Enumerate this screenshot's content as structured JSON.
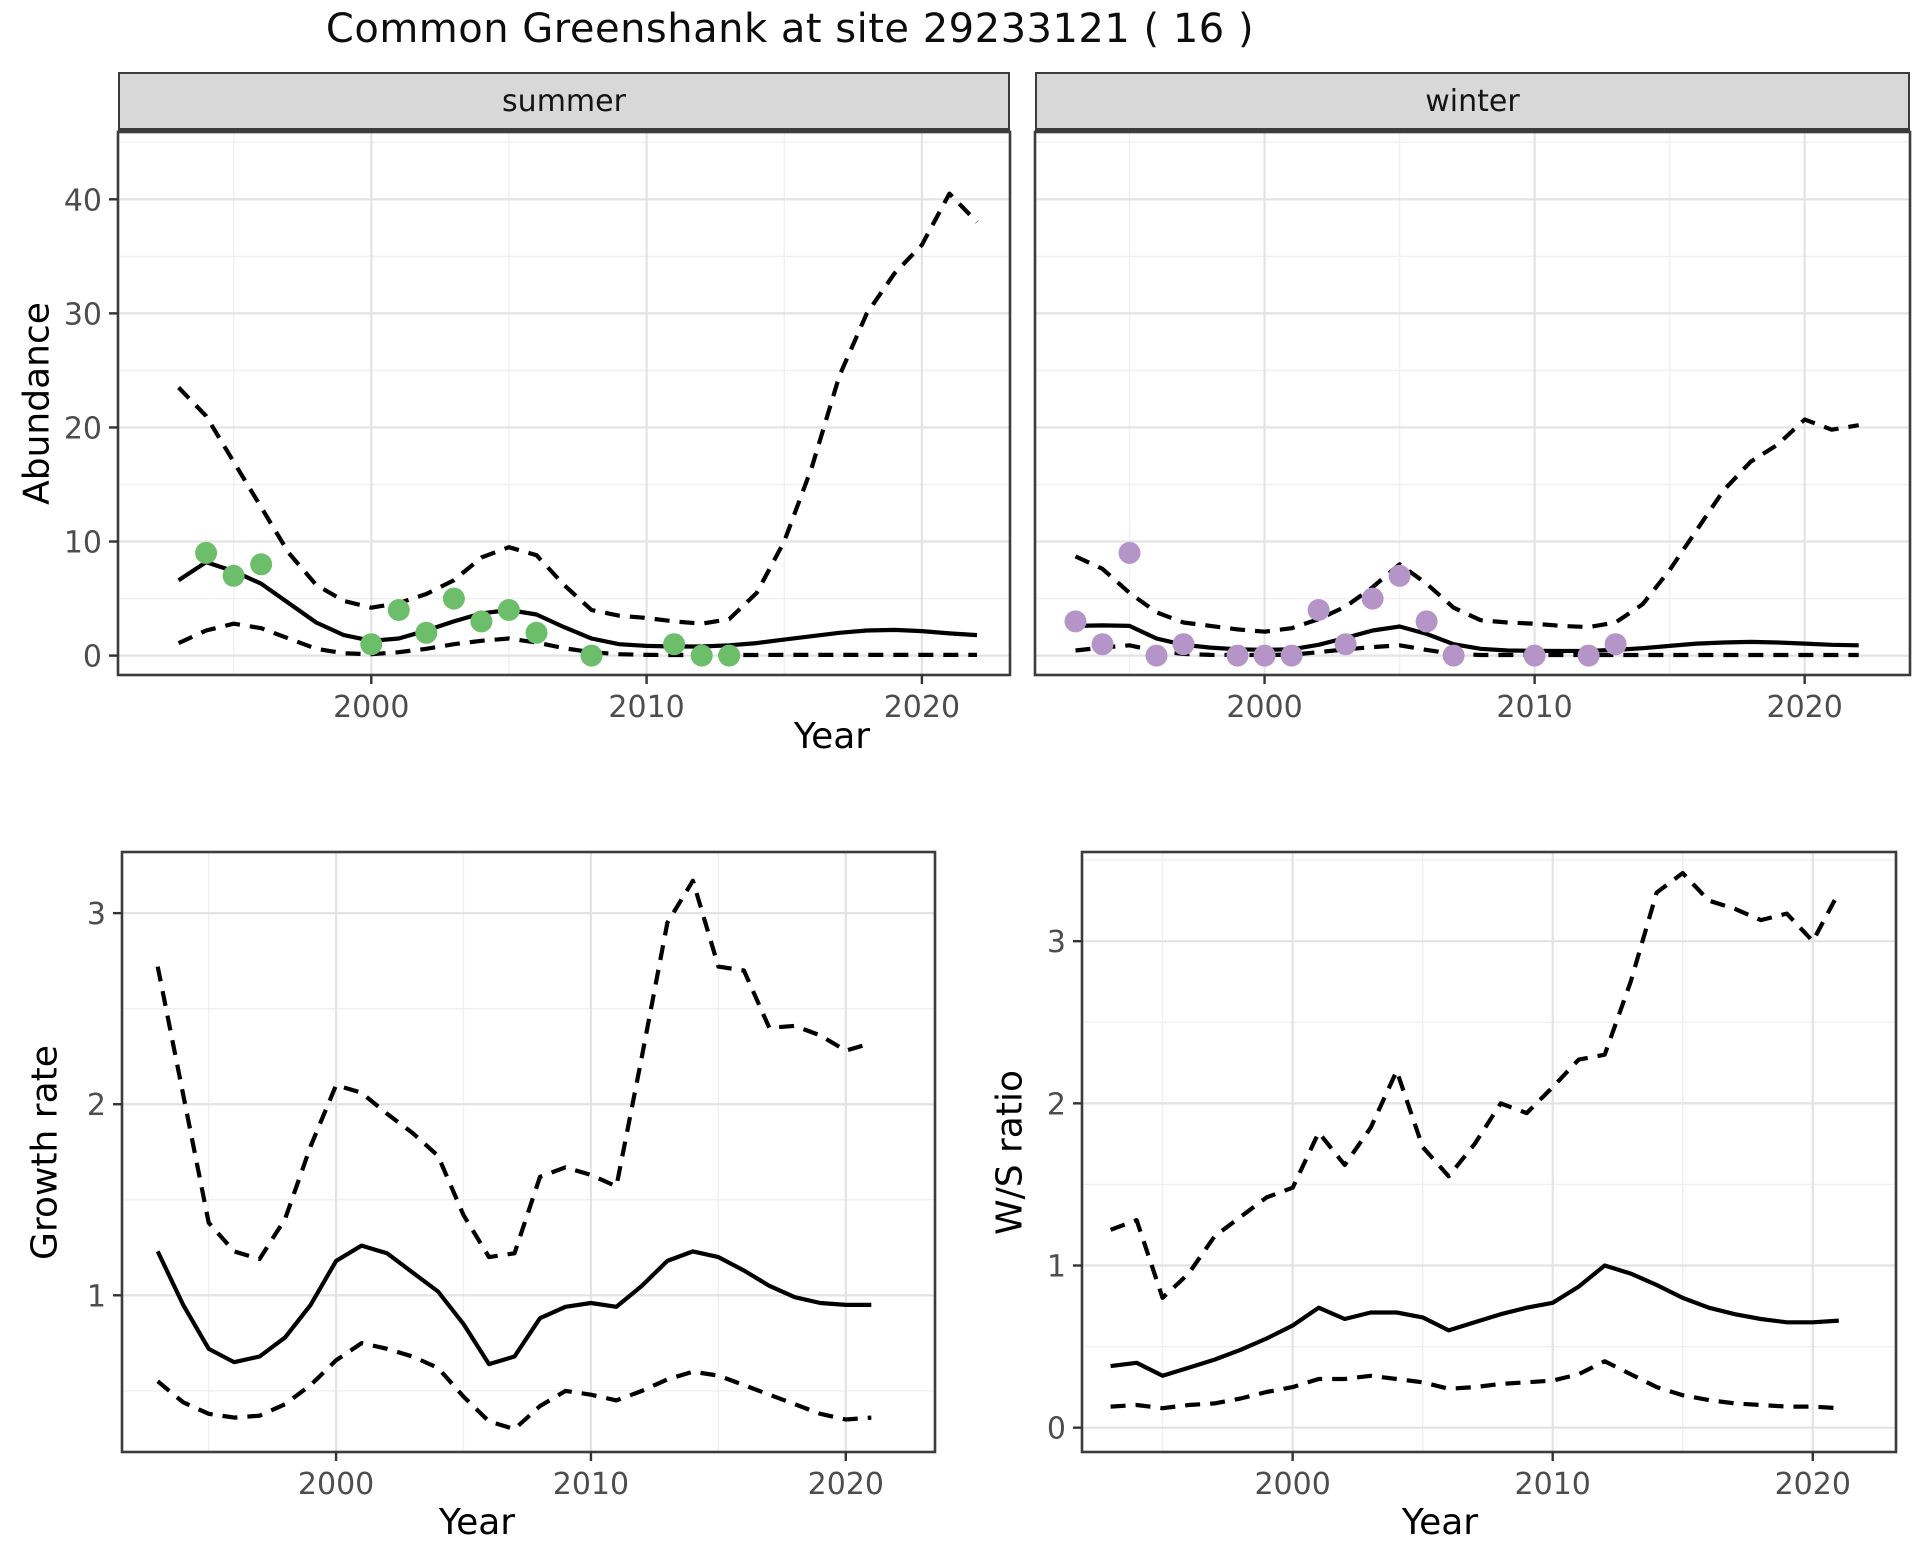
{
  "title": "Common Greenshank at site 29233121 ( 16 )",
  "top_row_xlabel": "Year",
  "colors": {
    "summer_points": "#6dbe6a",
    "winter_points": "#b594c7",
    "line": "#000000",
    "grid_major": "#e3e3e3",
    "grid_minor": "#f0f0f0",
    "strip_bg": "#d8d8d8",
    "panel_border": "#3c3c3c",
    "tick_text": "#4d4d4d"
  },
  "chart_data": [
    {
      "id": "abundance-summer",
      "type": "line",
      "facet": "summer",
      "xlabel": "Year",
      "ylabel": "Abundance",
      "xlim": [
        1990.8,
        2023.2
      ],
      "ylim": [
        -1.7,
        45.9
      ],
      "x_ticks": {
        "values": [
          2000,
          2010,
          2020
        ],
        "labels": [
          "2000",
          "2010",
          "2020"
        ]
      },
      "x_minor": [
        1995,
        2005,
        2015
      ],
      "y_ticks": {
        "values": [
          0,
          10,
          20,
          30,
          40
        ],
        "labels": [
          "0",
          "10",
          "20",
          "30",
          "40"
        ],
        "show": true
      },
      "y_minor": [
        5,
        15,
        25,
        35,
        45
      ],
      "years": [
        1993,
        1994,
        1995,
        1996,
        1997,
        1998,
        1999,
        2000,
        2001,
        2002,
        2003,
        2004,
        2005,
        2006,
        2007,
        2008,
        2009,
        2010,
        2011,
        2012,
        2013,
        2014,
        2015,
        2016,
        2017,
        2018,
        2019,
        2020,
        2021,
        2022
      ],
      "series": [
        {
          "name": "upper-ci",
          "style": "dashed",
          "values": [
            23.5,
            21.0,
            17.0,
            13.0,
            9.0,
            6.2,
            4.8,
            4.2,
            4.6,
            5.4,
            6.6,
            8.6,
            9.5,
            8.8,
            6.2,
            4.0,
            3.5,
            3.3,
            3.0,
            2.8,
            3.2,
            5.5,
            10.0,
            16.5,
            24.5,
            30.0,
            33.5,
            36.0,
            40.5,
            38.0
          ]
        },
        {
          "name": "estimate",
          "style": "solid",
          "values": [
            6.6,
            8.2,
            7.4,
            6.3,
            4.6,
            2.9,
            1.8,
            1.3,
            1.5,
            2.2,
            3.0,
            3.7,
            4.0,
            3.6,
            2.5,
            1.5,
            1.0,
            0.85,
            0.8,
            0.8,
            0.9,
            1.1,
            1.4,
            1.7,
            2.0,
            2.2,
            2.25,
            2.15,
            1.95,
            1.8
          ]
        },
        {
          "name": "lower-ci",
          "style": "dashed",
          "values": [
            1.1,
            2.2,
            2.8,
            2.4,
            1.5,
            0.6,
            0.2,
            0.12,
            0.3,
            0.6,
            1.0,
            1.3,
            1.5,
            1.15,
            0.65,
            0.3,
            0.12,
            0.06,
            0.05,
            0.05,
            0.05,
            0.05,
            0.06,
            0.06,
            0.06,
            0.06,
            0.06,
            0.06,
            0.06,
            0.06
          ]
        }
      ],
      "points": {
        "name": "observed-counts",
        "color_key": "summer_points",
        "x": [
          1994,
          1995,
          1996,
          2000,
          2001,
          2002,
          2003,
          2004,
          2005,
          2006,
          2008,
          2011,
          2012,
          2013
        ],
        "y": [
          9,
          7,
          8,
          1,
          4,
          2,
          5,
          3,
          4,
          2,
          0,
          1,
          0,
          0
        ]
      }
    },
    {
      "id": "abundance-winter",
      "type": "line",
      "facet": "winter",
      "xlabel": "Year",
      "ylabel": "",
      "xlim": [
        1991.5,
        2023.9
      ],
      "ylim": [
        -1.7,
        45.9
      ],
      "x_ticks": {
        "values": [
          2000,
          2010,
          2020
        ],
        "labels": [
          "2000",
          "2010",
          "2020"
        ]
      },
      "x_minor": [
        1995,
        2005,
        2015
      ],
      "y_ticks": {
        "values": [
          0,
          10,
          20,
          30,
          40
        ],
        "labels": [
          "0",
          "10",
          "20",
          "30",
          "40"
        ],
        "show": false
      },
      "y_minor": [
        5,
        15,
        25,
        35,
        45
      ],
      "years": [
        1993,
        1994,
        1995,
        1996,
        1997,
        1998,
        1999,
        2000,
        2001,
        2002,
        2003,
        2004,
        2005,
        2006,
        2007,
        2008,
        2009,
        2010,
        2011,
        2012,
        2013,
        2014,
        2015,
        2016,
        2017,
        2018,
        2019,
        2020,
        2021,
        2022
      ],
      "series": [
        {
          "name": "upper-ci",
          "style": "dashed",
          "values": [
            8.7,
            7.6,
            5.5,
            3.8,
            2.9,
            2.6,
            2.3,
            2.1,
            2.4,
            3.2,
            4.3,
            6.0,
            8.0,
            6.3,
            4.2,
            3.1,
            2.9,
            2.8,
            2.6,
            2.5,
            2.9,
            4.5,
            7.5,
            11.0,
            14.5,
            17.0,
            18.5,
            20.7,
            19.8,
            20.2
          ]
        },
        {
          "name": "estimate",
          "style": "solid",
          "values": [
            2.6,
            2.65,
            2.6,
            1.5,
            0.95,
            0.7,
            0.55,
            0.5,
            0.55,
            0.95,
            1.55,
            2.2,
            2.55,
            1.9,
            1.0,
            0.6,
            0.45,
            0.42,
            0.4,
            0.42,
            0.5,
            0.65,
            0.85,
            1.05,
            1.15,
            1.2,
            1.15,
            1.05,
            0.95,
            0.9
          ]
        },
        {
          "name": "lower-ci",
          "style": "dashed",
          "values": [
            0.45,
            0.7,
            0.9,
            0.4,
            0.15,
            0.06,
            0.05,
            0.05,
            0.08,
            0.3,
            0.55,
            0.75,
            0.9,
            0.5,
            0.15,
            0.05,
            0.05,
            0.05,
            0.05,
            0.05,
            0.05,
            0.05,
            0.05,
            0.05,
            0.05,
            0.05,
            0.05,
            0.05,
            0.05,
            0.05
          ]
        }
      ],
      "points": {
        "name": "observed-counts",
        "color_key": "winter_points",
        "x": [
          1993,
          1994,
          1995,
          1996,
          1997,
          1999,
          2000,
          2001,
          2002,
          2003,
          2004,
          2005,
          2006,
          2007,
          2010,
          2012,
          2013
        ],
        "y": [
          3,
          1,
          9,
          0,
          1,
          0,
          0,
          0,
          4,
          1,
          5,
          7,
          3,
          0,
          0,
          0,
          1
        ]
      }
    },
    {
      "id": "growth-rate",
      "type": "line",
      "facet": "",
      "xlabel": "Year",
      "ylabel": "Growth rate",
      "xlim": [
        1991.6,
        2023.5
      ],
      "ylim": [
        0.18,
        3.32
      ],
      "x_ticks": {
        "values": [
          2000,
          2010,
          2020
        ],
        "labels": [
          "2000",
          "2010",
          "2020"
        ]
      },
      "x_minor": [
        1995,
        2005,
        2015
      ],
      "y_ticks": {
        "values": [
          1,
          2,
          3
        ],
        "labels": [
          "1",
          "2",
          "3"
        ],
        "show": true
      },
      "y_minor": [
        0.5,
        1.5,
        2.5
      ],
      "years": [
        1993,
        1994,
        1995,
        1996,
        1997,
        1998,
        1999,
        2000,
        2001,
        2002,
        2003,
        2004,
        2005,
        2006,
        2007,
        2008,
        2009,
        2010,
        2011,
        2012,
        2013,
        2014,
        2015,
        2016,
        2017,
        2018,
        2019,
        2020,
        2021
      ],
      "series": [
        {
          "name": "upper-ci",
          "style": "dashed",
          "values": [
            2.72,
            2.05,
            1.38,
            1.23,
            1.19,
            1.4,
            1.78,
            2.1,
            2.06,
            1.95,
            1.85,
            1.73,
            1.42,
            1.2,
            1.22,
            1.62,
            1.67,
            1.63,
            1.57,
            2.25,
            2.95,
            3.17,
            2.72,
            2.7,
            2.4,
            2.41,
            2.36,
            2.28,
            2.32
          ]
        },
        {
          "name": "estimate",
          "style": "solid",
          "values": [
            1.23,
            0.95,
            0.72,
            0.65,
            0.68,
            0.78,
            0.95,
            1.18,
            1.26,
            1.22,
            1.12,
            1.02,
            0.85,
            0.64,
            0.68,
            0.88,
            0.94,
            0.96,
            0.94,
            1.05,
            1.18,
            1.23,
            1.2,
            1.13,
            1.05,
            0.99,
            0.96,
            0.95,
            0.95
          ]
        },
        {
          "name": "lower-ci",
          "style": "dashed",
          "values": [
            0.55,
            0.44,
            0.38,
            0.36,
            0.37,
            0.43,
            0.53,
            0.66,
            0.75,
            0.72,
            0.68,
            0.62,
            0.47,
            0.34,
            0.3,
            0.42,
            0.5,
            0.48,
            0.45,
            0.5,
            0.56,
            0.6,
            0.58,
            0.53,
            0.48,
            0.43,
            0.38,
            0.35,
            0.36
          ]
        }
      ],
      "points": null
    },
    {
      "id": "ws-ratio",
      "type": "line",
      "facet": "",
      "xlabel": "Year",
      "ylabel": "W/S ratio",
      "xlim": [
        1991.9,
        2023.2
      ],
      "ylim": [
        -0.15,
        3.55
      ],
      "x_ticks": {
        "values": [
          2000,
          2010,
          2020
        ],
        "labels": [
          "2000",
          "2010",
          "2020"
        ]
      },
      "x_minor": [
        1995,
        2005,
        2015
      ],
      "y_ticks": {
        "values": [
          0,
          1,
          2,
          3
        ],
        "labels": [
          "0",
          "1",
          "2",
          "3"
        ],
        "show": true
      },
      "y_minor": [
        0.5,
        1.5,
        2.5,
        3.5
      ],
      "years": [
        1993,
        1994,
        1995,
        1996,
        1997,
        1998,
        1999,
        2000,
        2001,
        2002,
        2003,
        2004,
        2005,
        2006,
        2007,
        2008,
        2009,
        2010,
        2011,
        2012,
        2013,
        2014,
        2015,
        2016,
        2017,
        2018,
        2019,
        2020,
        2021
      ],
      "series": [
        {
          "name": "upper-ci",
          "style": "dashed",
          "values": [
            1.22,
            1.28,
            0.8,
            0.95,
            1.18,
            1.3,
            1.42,
            1.48,
            1.82,
            1.62,
            1.85,
            2.2,
            1.73,
            1.55,
            1.75,
            2.0,
            1.94,
            2.1,
            2.27,
            2.3,
            2.75,
            3.3,
            3.42,
            3.25,
            3.2,
            3.13,
            3.17,
            3.0,
            3.3
          ]
        },
        {
          "name": "estimate",
          "style": "solid",
          "values": [
            0.38,
            0.4,
            0.32,
            0.37,
            0.42,
            0.48,
            0.55,
            0.63,
            0.74,
            0.67,
            0.71,
            0.71,
            0.68,
            0.6,
            0.65,
            0.7,
            0.74,
            0.77,
            0.87,
            1.0,
            0.95,
            0.88,
            0.8,
            0.74,
            0.7,
            0.67,
            0.65,
            0.65,
            0.66
          ]
        },
        {
          "name": "lower-ci",
          "style": "dashed",
          "values": [
            0.13,
            0.14,
            0.12,
            0.14,
            0.15,
            0.18,
            0.22,
            0.25,
            0.3,
            0.3,
            0.32,
            0.3,
            0.28,
            0.24,
            0.25,
            0.27,
            0.28,
            0.29,
            0.33,
            0.41,
            0.33,
            0.25,
            0.2,
            0.17,
            0.15,
            0.14,
            0.13,
            0.13,
            0.12
          ]
        }
      ],
      "points": null
    }
  ]
}
